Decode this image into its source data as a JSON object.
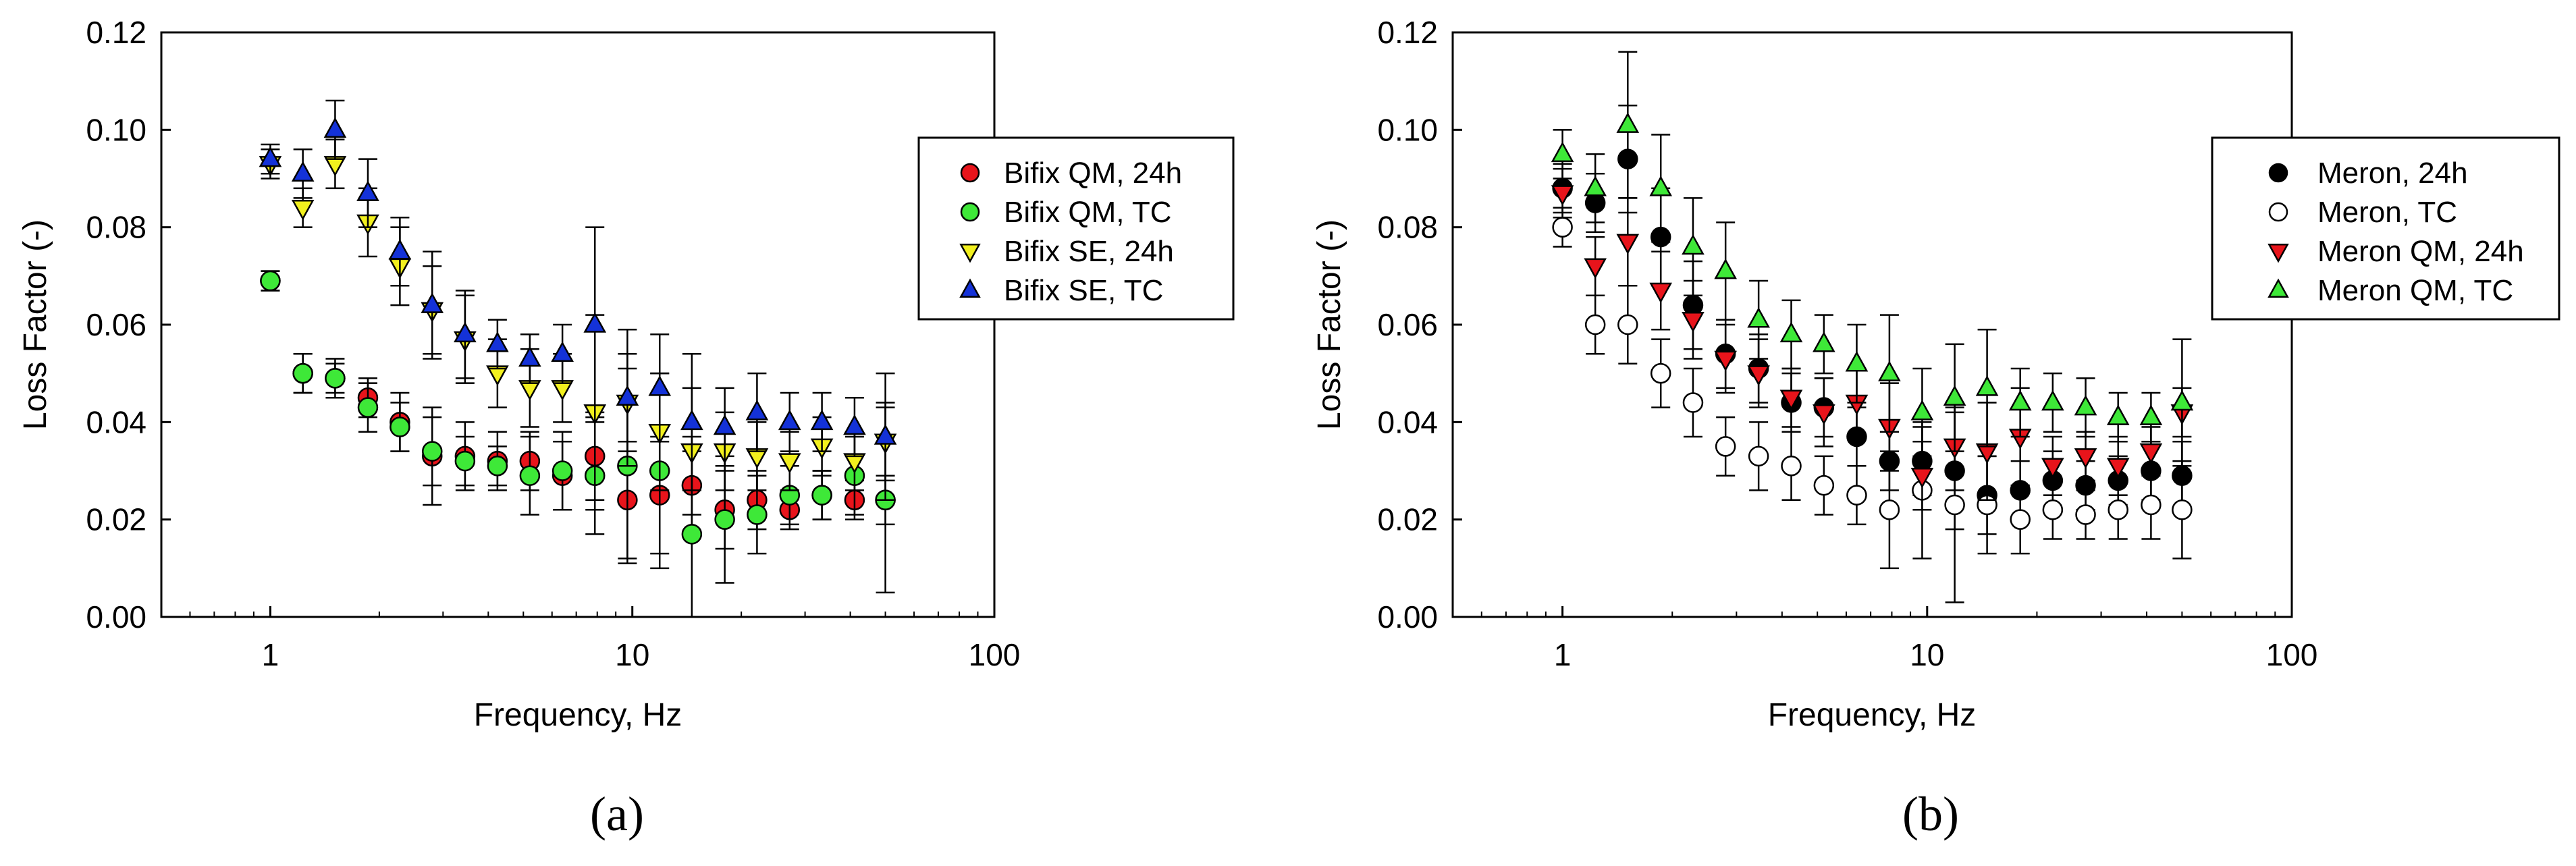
{
  "colors": {
    "red": "#e8141b",
    "green": "#3ee838",
    "yellow": "#f2f01e",
    "blue": "#1432d8",
    "black": "#000000",
    "white": "#ffffff"
  },
  "chart_data": [
    {
      "type": "scatter",
      "panel_label": "(a)",
      "xlabel": "Frequency, Hz",
      "ylabel": "Loss Factor (-)",
      "xscale": "log",
      "xlim": [
        0.5,
        100
      ],
      "ylim": [
        0.0,
        0.12
      ],
      "xticks": [
        1,
        10,
        100
      ],
      "xtick_labels": [
        "1",
        "10",
        "100"
      ],
      "yticks": [
        0.0,
        0.02,
        0.04,
        0.06,
        0.08,
        0.1,
        0.12
      ],
      "ytick_labels": [
        "0.00",
        "0.02",
        "0.04",
        "0.06",
        "0.08",
        "0.10",
        "0.12"
      ],
      "legend_position": "right",
      "x": [
        1.0,
        1.23,
        1.51,
        1.86,
        2.28,
        2.8,
        3.45,
        4.24,
        5.21,
        6.41,
        7.88,
        9.69,
        11.9,
        14.6,
        18.0,
        22.1,
        27.2,
        33.4,
        41.1,
        50.0
      ],
      "series": [
        {
          "name": "Bifix QM, 24h",
          "marker": "circle",
          "color": "red",
          "values": [
            0.069,
            0.05,
            0.049,
            0.045,
            0.04,
            0.033,
            0.033,
            0.032,
            0.032,
            0.029,
            0.033,
            0.024,
            0.025,
            0.027,
            0.022,
            0.024,
            0.022,
            0.025,
            0.024,
            0.024
          ],
          "errors": [
            0.002,
            0.004,
            0.004,
            0.004,
            0.006,
            0.01,
            0.007,
            0.006,
            0.006,
            0.007,
            0.009,
            0.012,
            0.012,
            0.01,
            0.008,
            0.006,
            0.004,
            0.005,
            0.004,
            0.005
          ]
        },
        {
          "name": "Bifix QM, TC",
          "marker": "circle",
          "color": "green",
          "values": [
            0.069,
            0.05,
            0.049,
            0.043,
            0.039,
            0.034,
            0.032,
            0.031,
            0.029,
            0.03,
            0.029,
            0.031,
            0.03,
            0.017,
            0.02,
            0.021,
            0.025,
            0.025,
            0.029,
            0.024
          ],
          "errors": [
            0.002,
            0.004,
            0.003,
            0.005,
            0.005,
            0.007,
            0.005,
            0.004,
            0.008,
            0.008,
            0.012,
            0.02,
            0.02,
            0.017,
            0.013,
            0.008,
            0.006,
            0.005,
            0.008,
            0.019
          ]
        },
        {
          "name": "Bifix SE, 24h",
          "marker": "triangle-down",
          "color": "yellow",
          "values": [
            0.093,
            0.084,
            0.093,
            0.081,
            0.072,
            0.063,
            0.057,
            0.05,
            0.047,
            0.047,
            0.042,
            0.044,
            0.038,
            0.034,
            0.034,
            0.033,
            0.032,
            0.035,
            0.032,
            0.036
          ],
          "errors": [
            0.003,
            0.004,
            0.005,
            0.007,
            0.008,
            0.009,
            0.009,
            0.007,
            0.008,
            0.007,
            0.02,
            0.01,
            0.012,
            0.013,
            0.008,
            0.007,
            0.006,
            0.006,
            0.006,
            0.008
          ]
        },
        {
          "name": "Bifix SE, TC",
          "marker": "triangle-up",
          "color": "blue",
          "values": [
            0.094,
            0.091,
            0.1,
            0.087,
            0.075,
            0.064,
            0.058,
            0.056,
            0.053,
            0.054,
            0.06,
            0.045,
            0.047,
            0.04,
            0.039,
            0.042,
            0.04,
            0.04,
            0.039,
            0.037
          ],
          "errors": [
            0.003,
            0.005,
            0.006,
            0.007,
            0.007,
            0.011,
            0.009,
            0.005,
            0.005,
            0.006,
            0.02,
            0.014,
            0.011,
            0.014,
            0.008,
            0.008,
            0.006,
            0.006,
            0.006,
            0.013
          ]
        }
      ]
    },
    {
      "type": "scatter",
      "panel_label": "(b)",
      "xlabel": "Frequency, Hz",
      "ylabel": "Loss Factor (-)",
      "xscale": "log",
      "xlim": [
        0.5,
        100
      ],
      "ylim": [
        0.0,
        0.12
      ],
      "xticks": [
        1,
        10,
        100
      ],
      "xtick_labels": [
        "1",
        "10",
        "100"
      ],
      "yticks": [
        0.0,
        0.02,
        0.04,
        0.06,
        0.08,
        0.1,
        0.12
      ],
      "ytick_labels": [
        "0.00",
        "0.02",
        "0.04",
        "0.06",
        "0.08",
        "0.10",
        "0.12"
      ],
      "legend_position": "top-right",
      "x": [
        1.0,
        1.23,
        1.51,
        1.86,
        2.28,
        2.8,
        3.45,
        4.24,
        5.21,
        6.41,
        7.88,
        9.69,
        11.9,
        14.6,
        18.0,
        22.1,
        27.2,
        33.4,
        41.1,
        50.0
      ],
      "series": [
        {
          "name": "Meron, 24h",
          "marker": "circle",
          "color": "black",
          "values": [
            0.088,
            0.085,
            0.094,
            0.078,
            0.064,
            0.054,
            0.051,
            0.044,
            0.043,
            0.037,
            0.032,
            0.032,
            0.03,
            0.025,
            0.026,
            0.028,
            0.027,
            0.028,
            0.03,
            0.029
          ],
          "errors": [
            0.005,
            0.006,
            0.011,
            0.01,
            0.009,
            0.007,
            0.007,
            0.006,
            0.006,
            0.006,
            0.006,
            0.007,
            0.012,
            0.008,
            0.006,
            0.006,
            0.005,
            0.005,
            0.006,
            0.007
          ]
        },
        {
          "name": "Meron, TC",
          "marker": "circle",
          "color": "white",
          "values": [
            0.08,
            0.06,
            0.06,
            0.05,
            0.044,
            0.035,
            0.033,
            0.031,
            0.027,
            0.025,
            0.022,
            0.026,
            0.023,
            0.023,
            0.02,
            0.022,
            0.021,
            0.022,
            0.023,
            0.022
          ],
          "errors": [
            0.004,
            0.006,
            0.008,
            0.007,
            0.007,
            0.006,
            0.007,
            0.007,
            0.006,
            0.006,
            0.012,
            0.014,
            0.02,
            0.01,
            0.007,
            0.006,
            0.005,
            0.006,
            0.007,
            0.01
          ]
        },
        {
          "name": "Meron QM, 24h",
          "marker": "triangle-down",
          "color": "red",
          "values": [
            0.087,
            0.072,
            0.077,
            0.067,
            0.061,
            0.053,
            0.05,
            0.045,
            0.042,
            0.044,
            0.039,
            0.029,
            0.035,
            0.034,
            0.037,
            0.031,
            0.033,
            0.031,
            0.034,
            0.042
          ],
          "errors": [
            0.005,
            0.006,
            0.009,
            0.008,
            0.008,
            0.007,
            0.007,
            0.006,
            0.007,
            0.007,
            0.009,
            0.007,
            0.009,
            0.01,
            0.01,
            0.006,
            0.005,
            0.006,
            0.005,
            0.005
          ]
        },
        {
          "name": "Meron QM, TC",
          "marker": "triangle-up",
          "color": "green",
          "values": [
            0.095,
            0.088,
            0.101,
            0.088,
            0.076,
            0.071,
            0.061,
            0.058,
            0.056,
            0.052,
            0.05,
            0.042,
            0.045,
            0.047,
            0.044,
            0.044,
            0.043,
            0.041,
            0.041,
            0.044
          ],
          "errors": [
            0.005,
            0.007,
            0.015,
            0.011,
            0.01,
            0.01,
            0.008,
            0.007,
            0.006,
            0.008,
            0.012,
            0.009,
            0.011,
            0.012,
            0.007,
            0.006,
            0.006,
            0.005,
            0.005,
            0.013
          ]
        }
      ]
    }
  ]
}
